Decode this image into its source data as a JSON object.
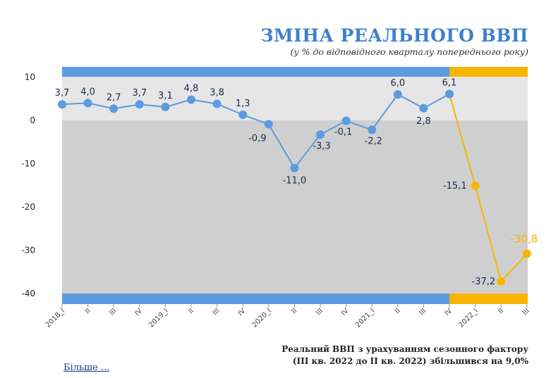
{
  "header": {
    "title": "ЗМІНА РЕАЛЬНОГО ВВП",
    "subtitle": "(у % до відповідного кварталу попереднього року)"
  },
  "footnote": {
    "line1": "Реальний ВВП з урахуванням сезонного фактору",
    "line2": "(ІІІ кв. 2022 до ІІ кв. 2022) збільшився на 9,0%"
  },
  "more_link": "Більше ...",
  "chart_data": {
    "type": "line",
    "ylim": [
      -42,
      12
    ],
    "yticks": [
      10,
      0,
      -10,
      -20,
      -30,
      -40
    ],
    "ytick_labels": [
      "10",
      "0",
      "-10",
      "-20",
      "-30",
      "-40"
    ],
    "categories": [
      "2018_I",
      "II",
      "III",
      "IV",
      "2019_I",
      "II",
      "III",
      "IV",
      "2020_I",
      "II",
      "III",
      "IV",
      "2021_I",
      "II",
      "III",
      "IV",
      "2022_I",
      "II",
      "III"
    ],
    "series": [
      {
        "values": [
          3.7,
          4.0,
          2.7,
          3.7,
          3.1,
          4.8,
          3.8,
          1.3,
          -0.9,
          -11.0,
          -3.3,
          -0.1,
          -2.2,
          6.0,
          2.8,
          6.1,
          null,
          null,
          null
        ],
        "labels": [
          "3,7",
          "4,0",
          "2,7",
          "3,7",
          "3,1",
          "4,8",
          "3,8",
          "1,3",
          "-0,9",
          "-11,0",
          "-3,3",
          "-0,1",
          "-2,2",
          "6,0",
          "2,8",
          "6,1",
          "",
          "",
          ""
        ],
        "color": "#5b9bdf"
      },
      {
        "values": [
          null,
          null,
          null,
          null,
          null,
          null,
          null,
          null,
          null,
          null,
          null,
          null,
          null,
          null,
          null,
          6.1,
          -15.1,
          -37.2,
          -30.8
        ],
        "labels": [
          "",
          "",
          "",
          "",
          "",
          "",
          "",
          "",
          "",
          "",
          "",
          "",
          "",
          "",
          "",
          "",
          "-15,1",
          "-37,2",
          "-30,8"
        ],
        "color": "#f7b500"
      }
    ],
    "colors": {
      "blue_band": "#5b9bdf",
      "orange_band": "#f7b500",
      "upper_bg": "#e6e6e6",
      "lower_bg": "#cfcfcf",
      "label_dark": "#1a2a4a",
      "label_orange": "#f7b500"
    }
  }
}
